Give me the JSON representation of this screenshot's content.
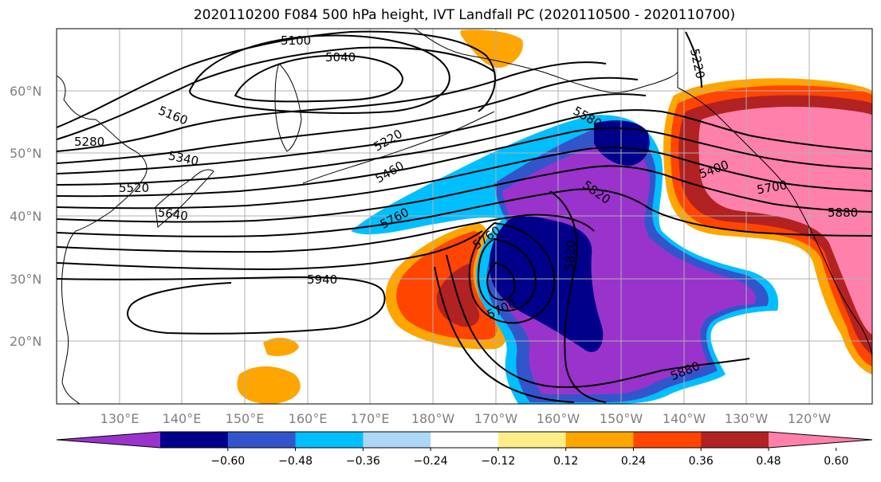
{
  "title": "2020110200 F084 500 hPa height, IVT Landfall PC (2020110500 - 2020110700)",
  "lat_labels": [
    "60°N",
    "50°N",
    "40°N",
    "30°N",
    "20°N"
  ],
  "lon_labels": [
    "130°E",
    "140°E",
    "150°E",
    "160°E",
    "170°E",
    "180°W",
    "170°W",
    "160°W",
    "150°W",
    "140°W",
    "130°W",
    "120°W"
  ],
  "contour_labels": [
    "5100",
    "5040",
    "5220",
    "5160",
    "5280",
    "5340",
    "5520",
    "5640",
    "5220",
    "5460",
    "5580",
    "5760",
    "5820",
    "5400",
    "5700",
    "5880",
    "5760",
    "5820",
    "5700",
    "5940",
    "5880"
  ],
  "colorbar": {
    "tick_labels": [
      "−0.60",
      "−0.48",
      "−0.36",
      "−0.24",
      "−0.12",
      "0.12",
      "0.24",
      "0.36",
      "0.48",
      "0.60"
    ],
    "colors": [
      "#9933cc",
      "#00008b",
      "#3355cc",
      "#00bfff",
      "#add8f5",
      "#ffffff",
      "#ffee88",
      "#ffa500",
      "#ff4500",
      "#b22222",
      "#ff80aa"
    ]
  }
}
